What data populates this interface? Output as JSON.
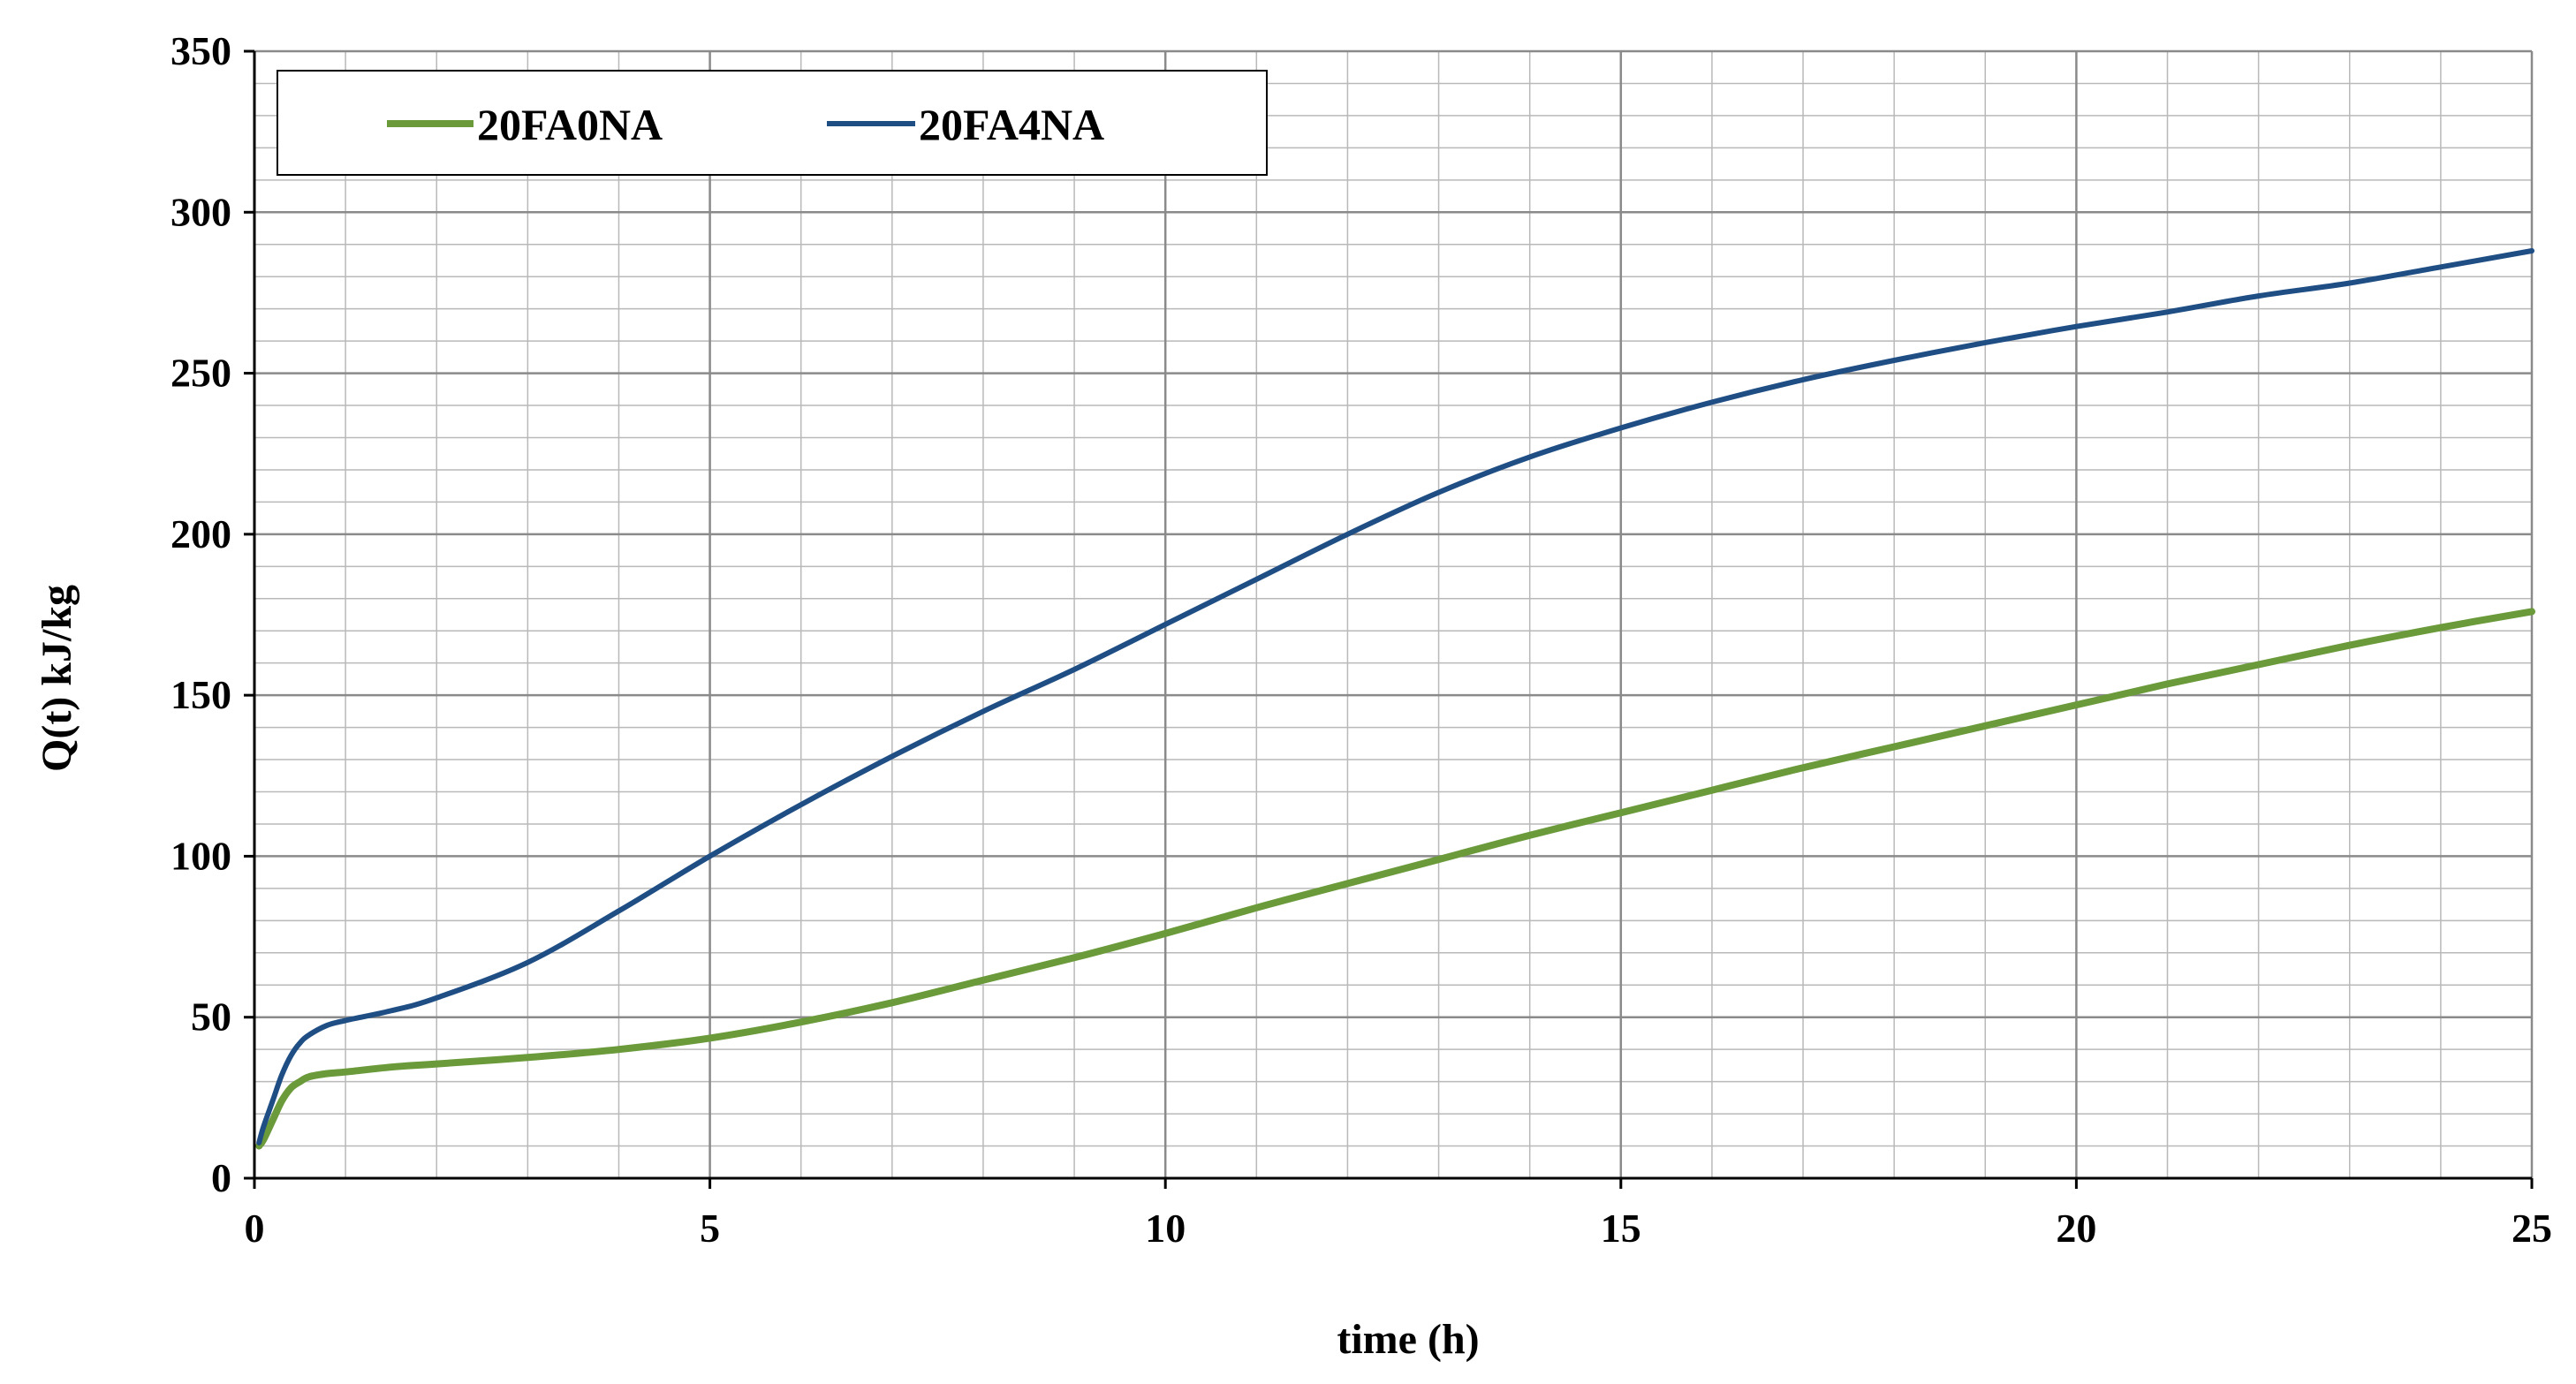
{
  "chart_data": {
    "type": "line",
    "title": "",
    "xlabel": "time (h)",
    "ylabel": "Q(t) kJ/kg",
    "xlim": [
      0,
      25
    ],
    "ylim": [
      0,
      350
    ],
    "x_ticks": [
      0,
      5,
      10,
      15,
      20,
      25
    ],
    "y_ticks": [
      0,
      50,
      100,
      150,
      200,
      250,
      300,
      350
    ],
    "x_minor_step": 1,
    "y_minor_step": 10,
    "grid": true,
    "legend_position": "top-left",
    "series": [
      {
        "name": "20FA0NA",
        "color": "#6a9a3a",
        "x": [
          0.05,
          0.1,
          0.2,
          0.3,
          0.4,
          0.5,
          0.6,
          0.8,
          1,
          1.5,
          2,
          3,
          4,
          5,
          6,
          7,
          8,
          9,
          10,
          11,
          12,
          13,
          14,
          15,
          16,
          17,
          18,
          19,
          20,
          21,
          22,
          23,
          24,
          25
        ],
        "y": [
          10,
          12,
          18,
          24,
          28,
          30,
          31.5,
          32.5,
          33,
          34.5,
          35.5,
          37.5,
          40,
          43.5,
          48.5,
          54.5,
          61.5,
          68.5,
          76,
          84,
          91.5,
          99,
          106.5,
          113.5,
          120.5,
          127.5,
          134,
          140.5,
          147,
          153.5,
          159.5,
          165.5,
          171,
          176
        ]
      },
      {
        "name": "20FA4NA",
        "color": "#1f4e85",
        "x": [
          0.05,
          0.1,
          0.2,
          0.3,
          0.4,
          0.5,
          0.6,
          0.8,
          1,
          1.5,
          2,
          3,
          4,
          5,
          6,
          7,
          8,
          9,
          10,
          11,
          12,
          13,
          14,
          15,
          16,
          17,
          18,
          19,
          20,
          21,
          22,
          23,
          24,
          25
        ],
        "y": [
          11,
          16,
          24,
          32,
          38,
          42,
          44.5,
          47.5,
          49,
          52,
          56,
          67,
          83,
          100,
          116,
          131,
          145,
          158,
          172,
          186,
          200,
          213,
          224,
          233,
          241,
          248,
          254,
          259.5,
          264.5,
          269,
          274,
          278,
          283,
          288
        ]
      }
    ]
  },
  "colors": {
    "grid": "#b9b9b9",
    "axis": "#000000",
    "background": "#ffffff"
  }
}
